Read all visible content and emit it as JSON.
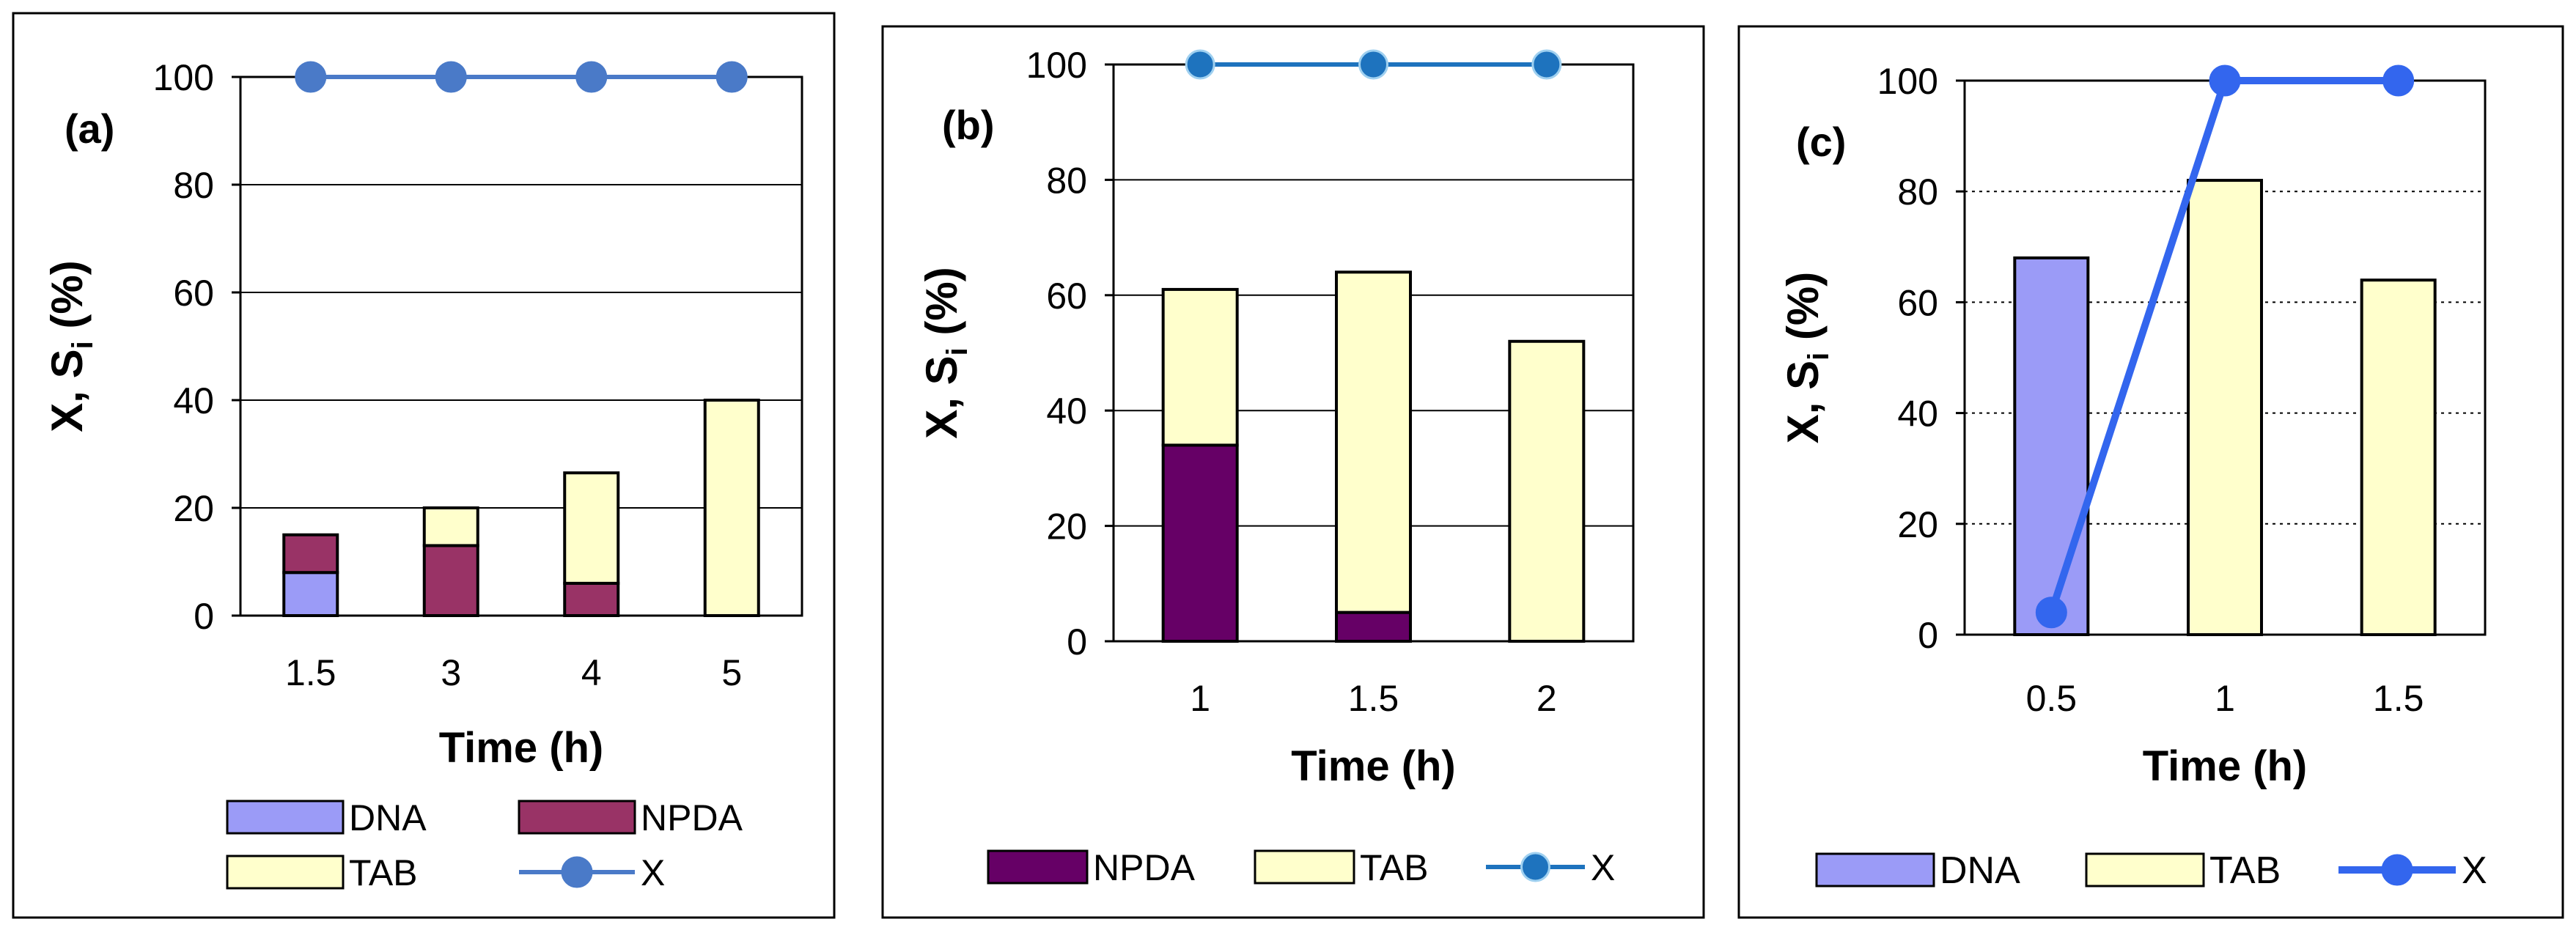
{
  "colors": {
    "dna": "#9b9bf7",
    "npda_a": "#993366",
    "npda_b": "#660066",
    "tab": "#ffffcc",
    "x_a": "#4a7ac8",
    "x_b": "#1e73be",
    "x_c": "#3366ee"
  },
  "chart_data": [
    {
      "type": "bar",
      "panel_label": "(a)",
      "stacked": true,
      "categories": [
        "1.5",
        "3",
        "4",
        "5"
      ],
      "series": [
        {
          "name": "DNA",
          "kind": "bar",
          "color_key": "dna",
          "values": [
            8,
            0,
            0,
            0
          ]
        },
        {
          "name": "NPDA",
          "kind": "bar",
          "color_key": "npda_a",
          "values": [
            7,
            13,
            6,
            0
          ]
        },
        {
          "name": "TAB",
          "kind": "bar",
          "color_key": "tab",
          "values": [
            0,
            7,
            20.5,
            40
          ]
        },
        {
          "name": "X",
          "kind": "line",
          "color_key": "x_a",
          "values": [
            100,
            100,
            100,
            100
          ]
        }
      ],
      "xlabel": "Time (h)",
      "ylabel_main": "X, S",
      "ylabel_sub": "i",
      "ylabel_end": " (%)",
      "ylim": [
        0,
        100
      ],
      "yticks": [
        "0",
        "20",
        "40",
        "60",
        "80",
        "100"
      ],
      "legend": [
        "DNA",
        "NPDA",
        "TAB",
        "X"
      ]
    },
    {
      "type": "bar",
      "panel_label": "(b)",
      "stacked": true,
      "categories": [
        "1",
        "1.5",
        "2"
      ],
      "series": [
        {
          "name": "NPDA",
          "kind": "bar",
          "color_key": "npda_b",
          "values": [
            34,
            5,
            0
          ]
        },
        {
          "name": "TAB",
          "kind": "bar",
          "color_key": "tab",
          "values": [
            27,
            59,
            52
          ]
        },
        {
          "name": "X",
          "kind": "line",
          "color_key": "x_b",
          "values": [
            100,
            100,
            100
          ]
        }
      ],
      "xlabel": "Time (h)",
      "ylabel_main": "X, S",
      "ylabel_sub": "i",
      "ylabel_end": " (%)",
      "ylim": [
        0,
        100
      ],
      "yticks": [
        "0",
        "20",
        "40",
        "60",
        "80",
        "100"
      ],
      "legend": [
        "NPDA",
        "TAB",
        "X"
      ]
    },
    {
      "type": "bar",
      "panel_label": "(c)",
      "stacked": true,
      "categories": [
        "0.5",
        "1",
        "1.5"
      ],
      "series": [
        {
          "name": "DNA",
          "kind": "bar",
          "color_key": "dna",
          "values": [
            68,
            0,
            0
          ]
        },
        {
          "name": "TAB",
          "kind": "bar",
          "color_key": "tab",
          "values": [
            0,
            82,
            64
          ]
        },
        {
          "name": "X",
          "kind": "line",
          "color_key": "x_c",
          "values": [
            4,
            100,
            100
          ]
        }
      ],
      "xlabel": "Time (h)",
      "ylabel_main": "X, S",
      "ylabel_sub": "i",
      "ylabel_end": " (%)",
      "ylim": [
        0,
        100
      ],
      "yticks": [
        "0",
        "20",
        "40",
        "60",
        "80",
        "100"
      ],
      "legend": [
        "DNA",
        "TAB",
        "X"
      ]
    }
  ]
}
